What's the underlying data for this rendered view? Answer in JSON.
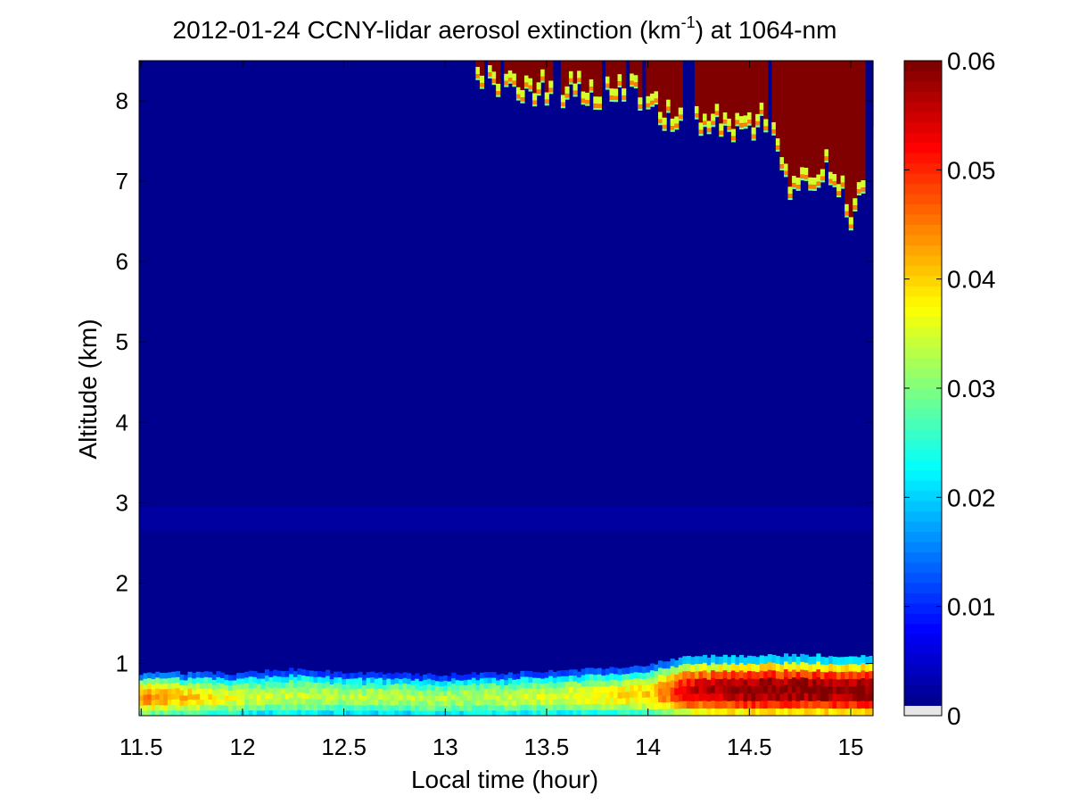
{
  "chart_data": {
    "type": "heatmap",
    "title_prefix": "2012-01-24 CCNY-lidar aerosol extinction (km",
    "title_superscript": "-1",
    "title_suffix": ") at 1064-nm",
    "xlabel": "Local time (hour)",
    "ylabel": "Altitude (km)",
    "xlim": [
      11.49,
      15.11
    ],
    "ylim": [
      0.35,
      8.5
    ],
    "x_ticks": [
      11.5,
      12,
      12.5,
      13,
      13.5,
      14,
      14.5,
      15
    ],
    "x_tick_labels": [
      "11.5",
      "12",
      "12.5",
      "13",
      "13.5",
      "14",
      "14.5",
      "15"
    ],
    "y_ticks": [
      1,
      2,
      3,
      4,
      5,
      6,
      7,
      8
    ],
    "y_tick_labels": [
      "1",
      "2",
      "3",
      "4",
      "5",
      "6",
      "7",
      "8"
    ],
    "colorbar": {
      "colormap": "jet",
      "clim": [
        0,
        0.06
      ],
      "ticks": [
        0,
        0.01,
        0.02,
        0.03,
        0.04,
        0.05,
        0.06
      ],
      "tick_labels": [
        "0",
        "0.01",
        "0.02",
        "0.03",
        "0.04",
        "0.05",
        "0.06"
      ]
    },
    "background_extinction": 0.001,
    "boundary_layer": {
      "altitude_range_km": [
        0.35,
        0.95
      ],
      "top_km": [
        {
          "time": 11.5,
          "value": 0.88
        },
        {
          "time": 12.0,
          "value": 0.88
        },
        {
          "time": 12.2,
          "value": 0.93
        },
        {
          "time": 12.5,
          "value": 0.88
        },
        {
          "time": 13.0,
          "value": 0.86
        },
        {
          "time": 13.5,
          "value": 0.9
        },
        {
          "time": 13.9,
          "value": 0.95
        },
        {
          "time": 14.2,
          "value": 1.08
        },
        {
          "time": 14.5,
          "value": 1.1
        },
        {
          "time": 15.1,
          "value": 1.1
        }
      ],
      "extinction": [
        {
          "time": 11.5,
          "value": 0.045
        },
        {
          "time": 12.0,
          "value": 0.035
        },
        {
          "time": 12.5,
          "value": 0.033
        },
        {
          "time": 13.0,
          "value": 0.033
        },
        {
          "time": 13.5,
          "value": 0.035
        },
        {
          "time": 14.0,
          "value": 0.04
        },
        {
          "time": 14.2,
          "value": 0.055
        },
        {
          "time": 14.5,
          "value": 0.06
        },
        {
          "time": 15.1,
          "value": 0.06
        }
      ]
    },
    "residual_layer": {
      "altitude_km": 2.8,
      "extinction": 0.003
    },
    "upper_cloud": {
      "extinction": 0.06,
      "base_km": [
        {
          "time": 13.05,
          "value": 8.5
        },
        {
          "time": 13.2,
          "value": 8.3
        },
        {
          "time": 13.5,
          "value": 8.25
        },
        {
          "time": 13.9,
          "value": 8.2
        },
        {
          "time": 14.1,
          "value": 7.85
        },
        {
          "time": 14.4,
          "value": 7.8
        },
        {
          "time": 14.6,
          "value": 7.85
        },
        {
          "time": 14.68,
          "value": 7.05
        },
        {
          "time": 14.9,
          "value": 7.3
        },
        {
          "time": 15.0,
          "value": 6.6
        },
        {
          "time": 15.1,
          "value": 7.7
        }
      ]
    }
  }
}
